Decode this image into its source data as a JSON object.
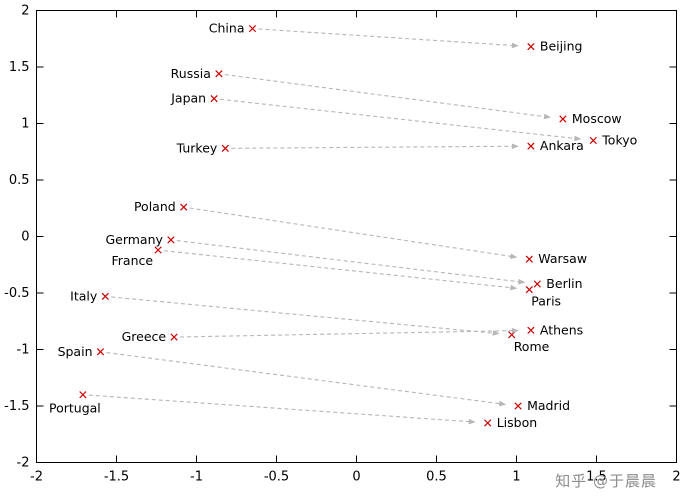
{
  "watermark": "知乎 @于晨晨",
  "chart_data": {
    "type": "scatter",
    "title": "",
    "xlabel": "",
    "ylabel": "",
    "xlim": [
      -2,
      2
    ],
    "ylim": [
      -2,
      2
    ],
    "xticks": [
      "-2",
      "-1.5",
      "-1",
      "-0.5",
      "0",
      "0.5",
      "1",
      "1.5",
      "2"
    ],
    "yticks": [
      "-2",
      "-1.5",
      "-1",
      "-0.5",
      "0",
      "0.5",
      "1",
      "1.5",
      "2"
    ],
    "grid": false,
    "legend": "none",
    "marker": "x",
    "marker_color": "#cc0000",
    "arrow_color": "#b6b6b6",
    "arrow_style": "dashed",
    "pairs": [
      {
        "country": {
          "label": "China",
          "x": -0.65,
          "y": 1.84,
          "side": "left"
        },
        "capital": {
          "label": "Beijing",
          "x": 1.09,
          "y": 1.68,
          "side": "right"
        }
      },
      {
        "country": {
          "label": "Russia",
          "x": -0.86,
          "y": 1.44,
          "side": "left"
        },
        "capital": {
          "label": "Moscow",
          "x": 1.29,
          "y": 1.04,
          "side": "right"
        }
      },
      {
        "country": {
          "label": "Japan",
          "x": -0.89,
          "y": 1.22,
          "side": "left"
        },
        "capital": {
          "label": "Tokyo",
          "x": 1.48,
          "y": 0.85,
          "side": "right"
        }
      },
      {
        "country": {
          "label": "Turkey",
          "x": -0.82,
          "y": 0.78,
          "side": "left"
        },
        "capital": {
          "label": "Ankara",
          "x": 1.09,
          "y": 0.8,
          "side": "right"
        }
      },
      {
        "country": {
          "label": "Poland",
          "x": -1.08,
          "y": 0.26,
          "side": "left"
        },
        "capital": {
          "label": "Warsaw",
          "x": 1.08,
          "y": -0.2,
          "side": "right"
        }
      },
      {
        "country": {
          "label": "Germany",
          "x": -1.16,
          "y": -0.03,
          "side": "left"
        },
        "capital": {
          "label": "Berlin",
          "x": 1.13,
          "y": -0.42,
          "side": "right"
        }
      },
      {
        "country": {
          "label": "France",
          "x": -1.24,
          "y": -0.12,
          "side": "below-left"
        },
        "capital": {
          "label": "Paris",
          "x": 1.08,
          "y": -0.47,
          "side": "below-right"
        }
      },
      {
        "country": {
          "label": "Italy",
          "x": -1.57,
          "y": -0.53,
          "side": "left"
        },
        "capital": {
          "label": "Rome",
          "x": 0.97,
          "y": -0.87,
          "side": "below-right"
        }
      },
      {
        "country": {
          "label": "Greece",
          "x": -1.14,
          "y": -0.89,
          "side": "left"
        },
        "capital": {
          "label": "Athens",
          "x": 1.09,
          "y": -0.83,
          "side": "right"
        }
      },
      {
        "country": {
          "label": "Spain",
          "x": -1.6,
          "y": -1.02,
          "side": "left"
        },
        "capital": {
          "label": "Madrid",
          "x": 1.01,
          "y": -1.5,
          "side": "right"
        }
      },
      {
        "country": {
          "label": "Portugal",
          "x": -1.71,
          "y": -1.4,
          "side": "below"
        },
        "capital": {
          "label": "Lisbon",
          "x": 0.82,
          "y": -1.65,
          "side": "right"
        }
      }
    ]
  }
}
